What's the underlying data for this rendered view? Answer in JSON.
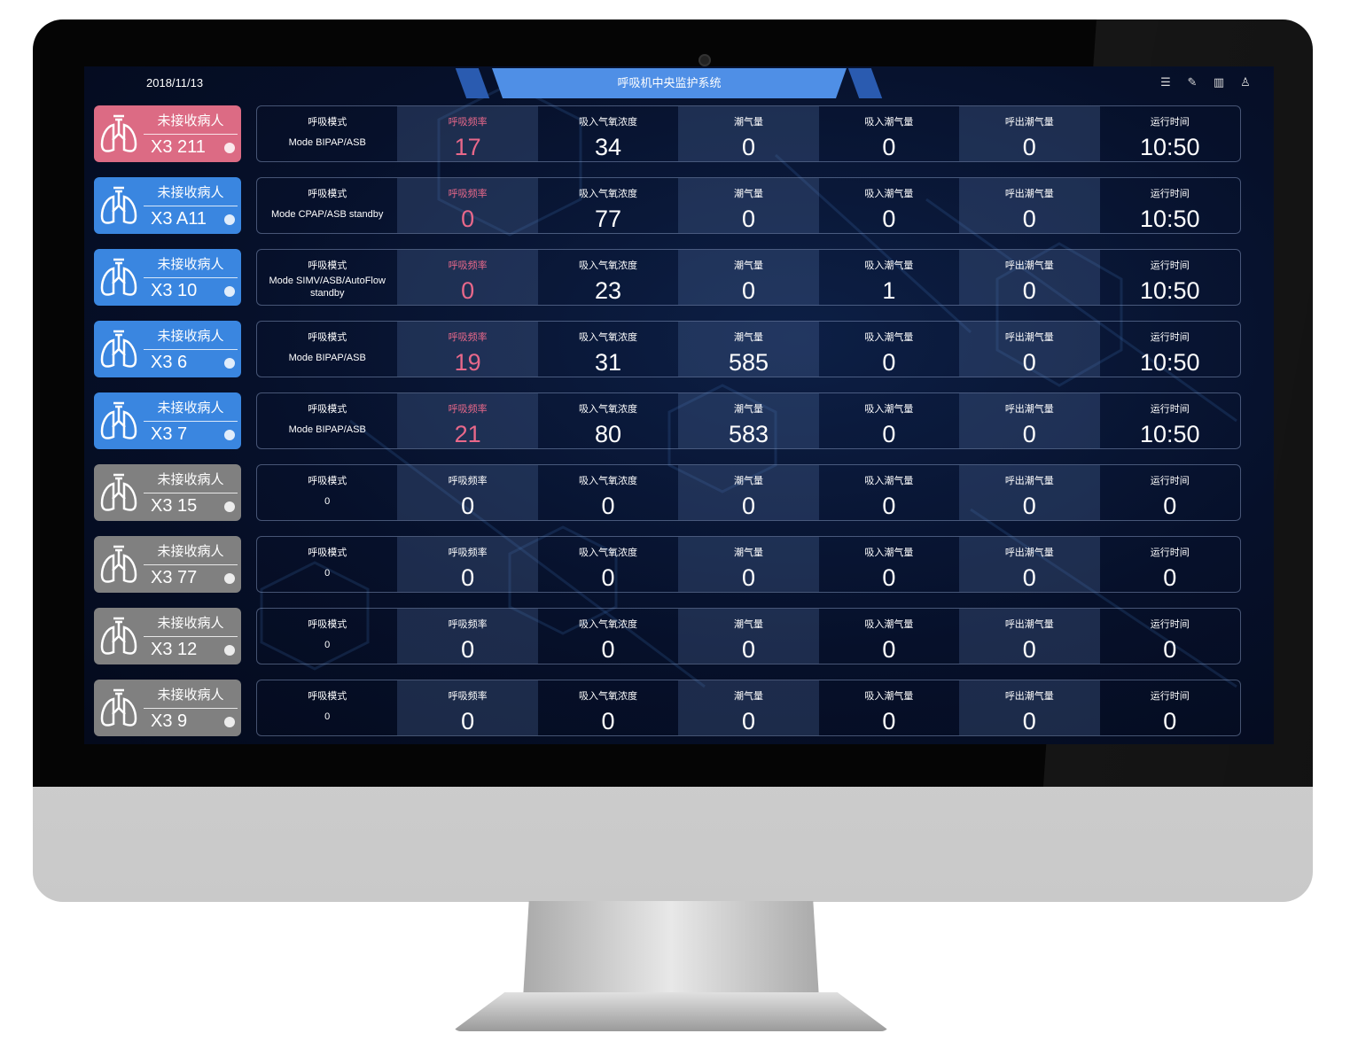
{
  "header": {
    "date": "2018/11/13",
    "title": "呼吸机中央监护系统",
    "icons": [
      "list-icon",
      "edit-icon",
      "layout-icon",
      "user-icon"
    ]
  },
  "colors": {
    "pink": "#dc6b84",
    "blue": "#3a86e0",
    "gray": "#808080",
    "alert_text": "#e8688a"
  },
  "labels": [
    "呼吸模式",
    "呼吸频率",
    "吸入气氧浓度",
    "潮气量",
    "吸入潮气量",
    "呼出潮气量",
    "运行时间"
  ],
  "rows": [
    {
      "status": "未接收病人",
      "bed": "X3 211",
      "color": "pink",
      "mode": "Mode BIPAP/ASB",
      "alert": true,
      "values": [
        "17",
        "34",
        "0",
        "0",
        "0",
        "10:50"
      ]
    },
    {
      "status": "未接收病人",
      "bed": "X3 A11",
      "color": "blue",
      "mode": "Mode CPAP/ASB standby",
      "alert": true,
      "values": [
        "0",
        "77",
        "0",
        "0",
        "0",
        "10:50"
      ]
    },
    {
      "status": "未接收病人",
      "bed": "X3 10",
      "color": "blue",
      "mode": "Mode SIMV/ASB/AutoFlow standby",
      "alert": true,
      "values": [
        "0",
        "23",
        "0",
        "1",
        "0",
        "10:50"
      ]
    },
    {
      "status": "未接收病人",
      "bed": "X3 6",
      "color": "blue",
      "mode": "Mode BIPAP/ASB",
      "alert": true,
      "values": [
        "19",
        "31",
        "585",
        "0",
        "0",
        "10:50"
      ]
    },
    {
      "status": "未接收病人",
      "bed": "X3 7",
      "color": "blue",
      "mode": "Mode BIPAP/ASB",
      "alert": true,
      "values": [
        "21",
        "80",
        "583",
        "0",
        "0",
        "10:50"
      ]
    },
    {
      "status": "未接收病人",
      "bed": "X3 15",
      "color": "gray",
      "mode": "0",
      "alert": false,
      "values": [
        "0",
        "0",
        "0",
        "0",
        "0",
        "0"
      ]
    },
    {
      "status": "未接收病人",
      "bed": "X3 77",
      "color": "gray",
      "mode": "0",
      "alert": false,
      "values": [
        "0",
        "0",
        "0",
        "0",
        "0",
        "0"
      ]
    },
    {
      "status": "未接收病人",
      "bed": "X3 12",
      "color": "gray",
      "mode": "0",
      "alert": false,
      "values": [
        "0",
        "0",
        "0",
        "0",
        "0",
        "0"
      ]
    },
    {
      "status": "未接收病人",
      "bed": "X3 9",
      "color": "gray",
      "mode": "0",
      "alert": false,
      "values": [
        "0",
        "0",
        "0",
        "0",
        "0",
        "0"
      ]
    }
  ]
}
